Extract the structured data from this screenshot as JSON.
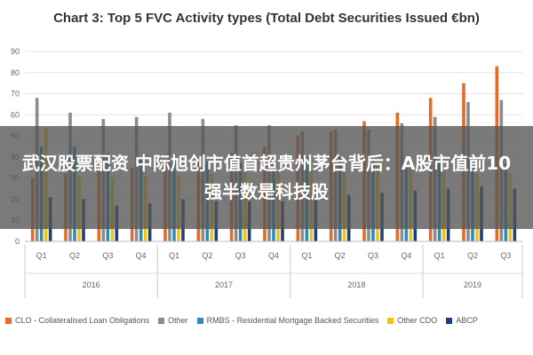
{
  "chart_data": {
    "type": "bar",
    "title": "Chart 3: Top 5 FVC Activity types (Total Debt Securities Issued €bn)",
    "xlabel": "",
    "ylabel": "",
    "ylim": [
      0,
      90
    ],
    "yticks": [
      0,
      10,
      20,
      30,
      40,
      50,
      60,
      70,
      80,
      90
    ],
    "grid": true,
    "legend_position": "bottom",
    "categories": [
      "Q1",
      "Q2",
      "Q3",
      "Q4",
      "Q1",
      "Q2",
      "Q3",
      "Q4",
      "Q1",
      "Q2",
      "Q3",
      "Q4",
      "Q1",
      "Q2",
      "Q3"
    ],
    "year_groups": [
      {
        "label": "2016",
        "count": 4
      },
      {
        "label": "2017",
        "count": 4
      },
      {
        "label": "2018",
        "count": 4
      },
      {
        "label": "2019",
        "count": 3
      }
    ],
    "series": [
      {
        "name": "CLO - Collateralised Loan Obligations",
        "color": "#E36C2B",
        "values": [
          30,
          32,
          33,
          35,
          38,
          40,
          42,
          45,
          50,
          52,
          57,
          61,
          68,
          75,
          83
        ]
      },
      {
        "name": "Other",
        "color": "#8C8C8C",
        "values": [
          68,
          61,
          58,
          59,
          61,
          58,
          55,
          55,
          52,
          53,
          53,
          56,
          59,
          66,
          67
        ]
      },
      {
        "name": "RMBS - Residential Mortgage Backed Securities",
        "color": "#2E8BB5",
        "values": [
          45,
          45,
          42,
          40,
          38,
          38,
          37,
          37,
          40,
          40,
          39,
          38,
          38,
          38,
          37
        ]
      },
      {
        "name": "Other CDO",
        "color": "#F2C21A",
        "values": [
          54,
          31,
          30,
          31,
          31,
          32,
          33,
          33,
          34,
          35,
          36,
          37,
          33,
          32,
          32
        ]
      },
      {
        "name": "ABCP",
        "color": "#1F3F7A",
        "values": [
          21,
          20,
          17,
          18,
          20,
          19,
          19,
          19,
          20,
          22,
          23,
          24,
          25,
          26,
          25
        ]
      }
    ]
  },
  "overlay": {
    "headline": "武汉股票配资 中际旭创市值首超贵州茅台背后：A股市值前10强半数是科技股"
  }
}
